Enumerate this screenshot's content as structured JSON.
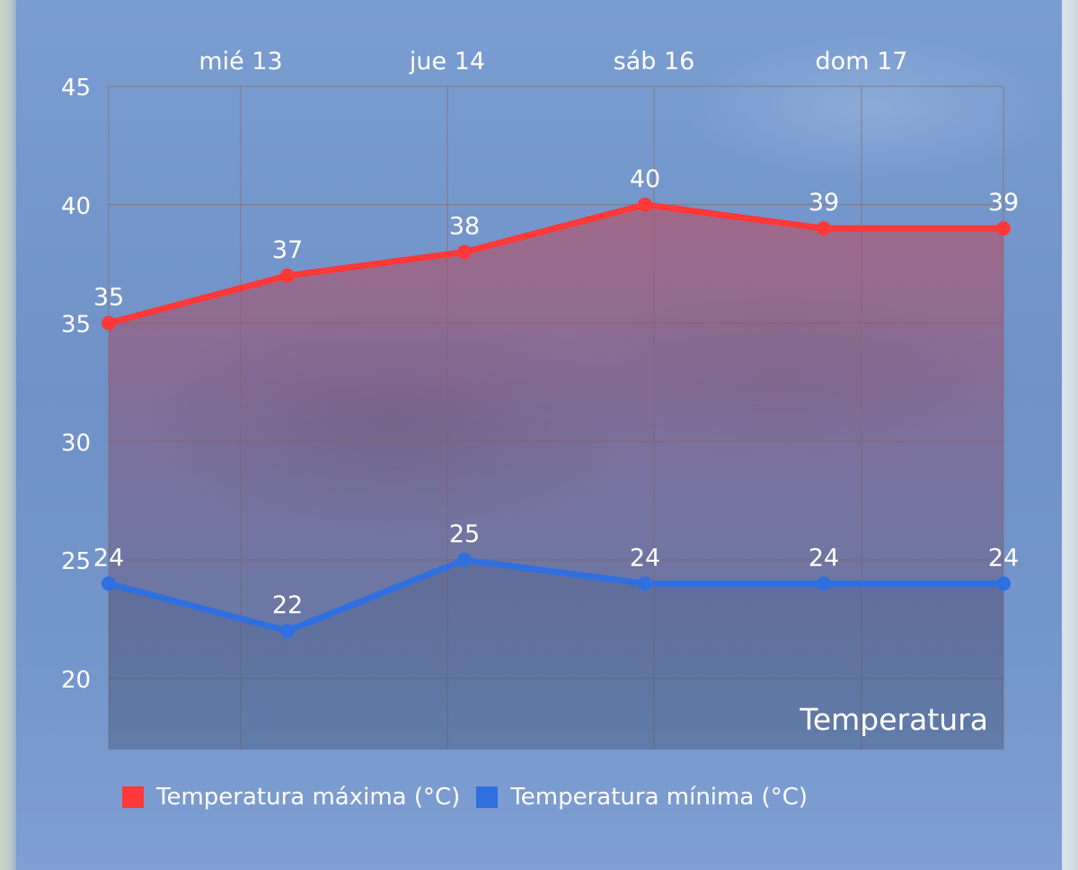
{
  "chart_data": {
    "type": "line",
    "title": "Temperatura",
    "categories": [
      "",
      "mié 13",
      "jue 14",
      "sáb 16",
      "dom 17",
      ""
    ],
    "x_tick_labels": [
      "mié 13",
      "jue 14",
      "sáb 16",
      "dom 17"
    ],
    "ylim": [
      17,
      45
    ],
    "y_ticks": [
      20,
      25,
      30,
      35,
      40,
      45
    ],
    "series": [
      {
        "name": "Temperatura máxima (°C)",
        "color": "#ff3838",
        "values": [
          35,
          37,
          38,
          40,
          39,
          39
        ]
      },
      {
        "name": "Temperatura mínima (°C)",
        "color": "#2f6fe0",
        "values": [
          24,
          22,
          25,
          24,
          24,
          24
        ]
      }
    ],
    "legend_position": "bottom-left",
    "grid": true
  }
}
